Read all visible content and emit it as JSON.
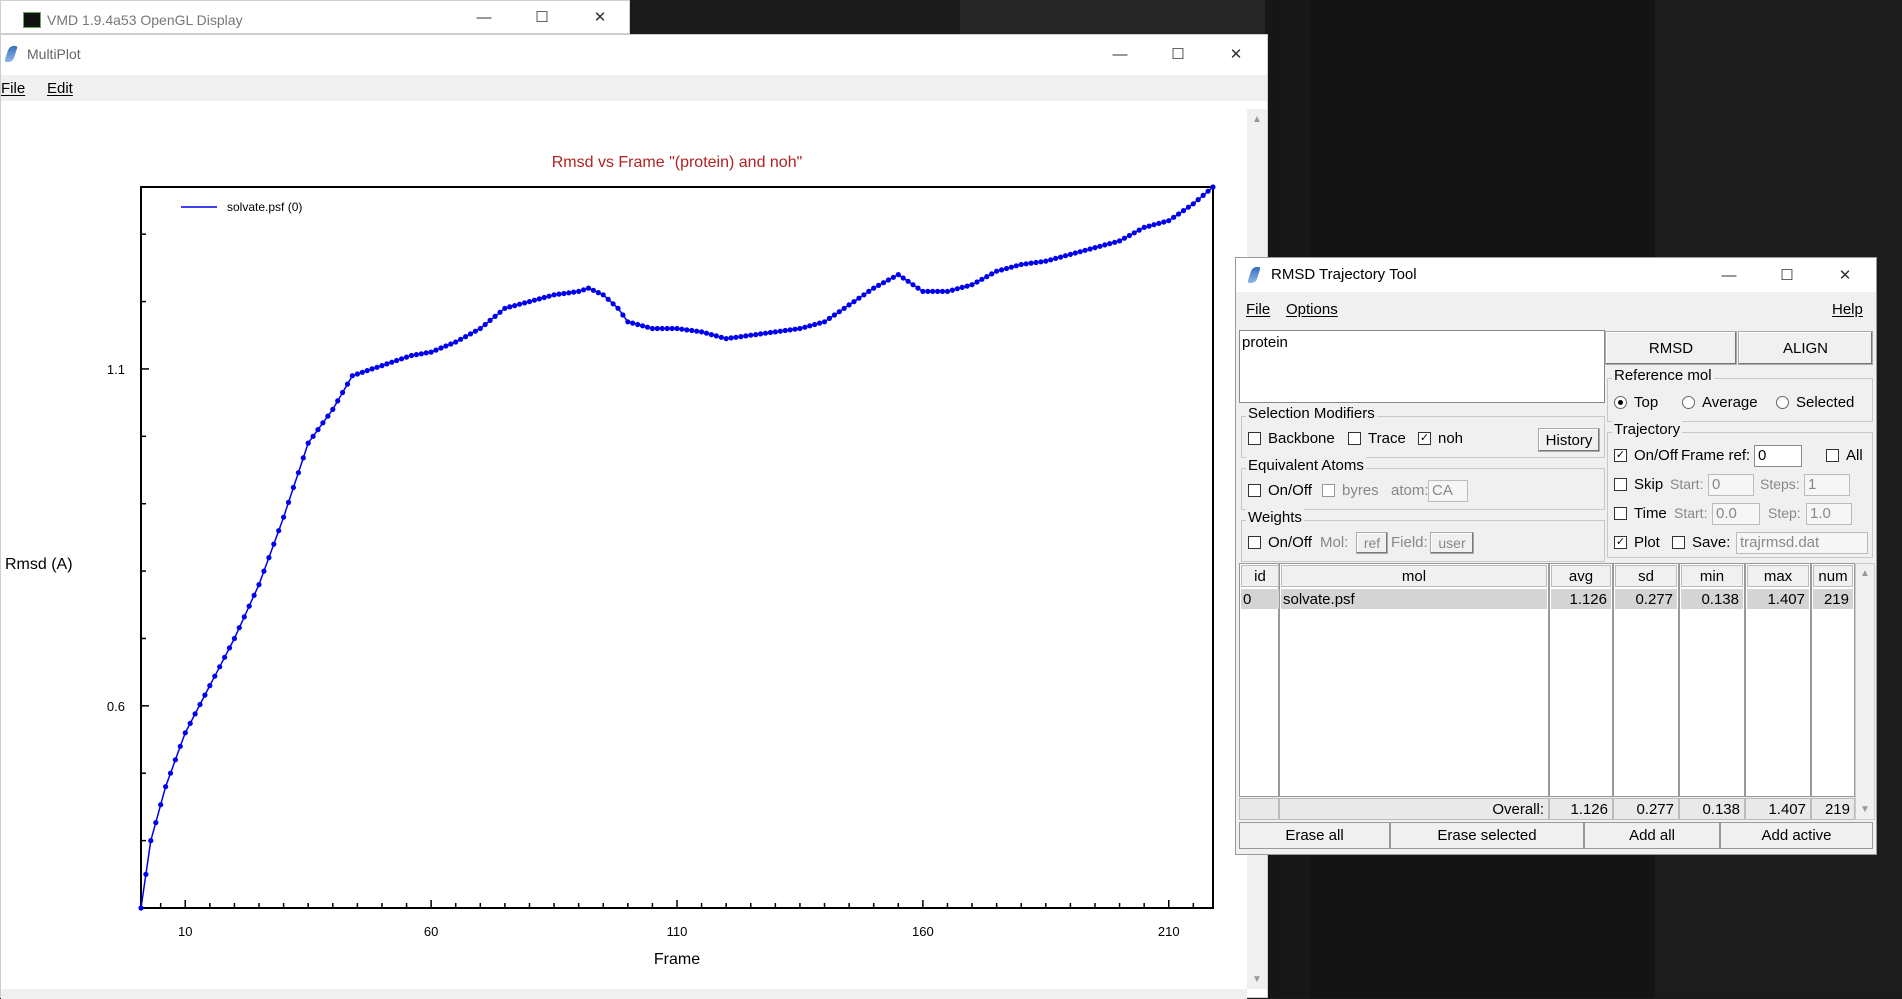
{
  "vmd_window": {
    "title": "VMD 1.9.4a53 OpenGL Display"
  },
  "multiplot": {
    "title": "MultiPlot",
    "menu": {
      "file": "File",
      "edit": "Edit"
    }
  },
  "chart_data": {
    "type": "line",
    "title": "Rmsd vs Frame \"(protein) and noh\"",
    "xlabel": "Frame",
    "ylabel": "Rmsd (A)",
    "xlim": [
      1,
      219
    ],
    "ylim": [
      0.3,
      1.37
    ],
    "xticks": [
      10,
      60,
      110,
      160,
      210
    ],
    "yticks": [
      0.6,
      1.1
    ],
    "legend": {
      "position": "top-left"
    },
    "grid": false,
    "colors": {
      "series": "#0000ee",
      "title": "#b22222"
    },
    "series": [
      {
        "name": "solvate.psf (0)",
        "x": [
          1,
          3,
          6,
          10,
          15,
          20,
          25,
          30,
          35,
          40,
          44,
          48,
          52,
          56,
          60,
          65,
          70,
          75,
          80,
          85,
          90,
          92,
          95,
          98,
          100,
          105,
          110,
          115,
          120,
          125,
          130,
          135,
          140,
          145,
          150,
          155,
          158,
          160,
          165,
          170,
          175,
          180,
          185,
          190,
          195,
          200,
          205,
          210,
          215,
          219
        ],
        "y": [
          0.3,
          0.4,
          0.48,
          0.56,
          0.63,
          0.7,
          0.78,
          0.88,
          0.99,
          1.04,
          1.09,
          1.1,
          1.11,
          1.12,
          1.125,
          1.14,
          1.16,
          1.19,
          1.2,
          1.21,
          1.215,
          1.22,
          1.21,
          1.19,
          1.17,
          1.16,
          1.16,
          1.155,
          1.145,
          1.15,
          1.155,
          1.16,
          1.17,
          1.195,
          1.22,
          1.24,
          1.225,
          1.215,
          1.215,
          1.225,
          1.245,
          1.255,
          1.26,
          1.27,
          1.28,
          1.29,
          1.31,
          1.32,
          1.345,
          1.37
        ]
      }
    ]
  },
  "rmsd_tool": {
    "title": "RMSD Trajectory Tool",
    "menu": {
      "file": "File",
      "options": "Options",
      "help": "Help"
    },
    "selection_text": "protein",
    "buttons": {
      "rmsd": "RMSD",
      "align": "ALIGN"
    },
    "selection_modifiers": {
      "label": "Selection Modifiers",
      "backbone": "Backbone",
      "trace": "Trace",
      "noh": "noh",
      "history": "History",
      "noh_checked": true
    },
    "equivalent_atoms": {
      "label": "Equivalent Atoms",
      "onoff": "On/Off",
      "byres": "byres",
      "atom_label": "atom:",
      "atom_value": "CA"
    },
    "weights": {
      "label": "Weights",
      "onoff": "On/Off",
      "mol_label": "Mol:",
      "mol_btn": "ref",
      "field_label": "Field:",
      "field_btn": "user"
    },
    "reference_mol": {
      "label": "Reference mol",
      "top": "Top",
      "average": "Average",
      "selected": "Selected",
      "selected_option": "Top"
    },
    "trajectory": {
      "label": "Trajectory",
      "onoff": "On/Off",
      "frame_ref_label": "Frame ref:",
      "frame_ref_value": "0",
      "all": "All",
      "skip": "Skip",
      "skip_start_label": "Start:",
      "skip_start": "0",
      "steps_label": "Steps:",
      "steps": "1",
      "time": "Time",
      "time_start_label": "Start:",
      "time_start": "0.0",
      "step_label": "Step:",
      "step": "1.0",
      "plot": "Plot",
      "save": "Save:",
      "save_file": "trajrmsd.dat",
      "onoff_checked": true,
      "plot_checked": true
    },
    "table": {
      "headers": {
        "id": "id",
        "mol": "mol",
        "avg": "avg",
        "sd": "sd",
        "min": "min",
        "max": "max",
        "num": "num"
      },
      "row": {
        "id": "0",
        "mol": "solvate.psf",
        "avg": "1.126",
        "sd": "0.277",
        "min": "0.138",
        "max": "1.407",
        "num": "219"
      },
      "overall": {
        "label": "Overall:",
        "avg": "1.126",
        "sd": "0.277",
        "min": "0.138",
        "max": "1.407",
        "num": "219"
      }
    },
    "bottom_buttons": {
      "erase_all": "Erase all",
      "erase_selected": "Erase selected",
      "add_all": "Add all",
      "add_active": "Add active"
    }
  }
}
